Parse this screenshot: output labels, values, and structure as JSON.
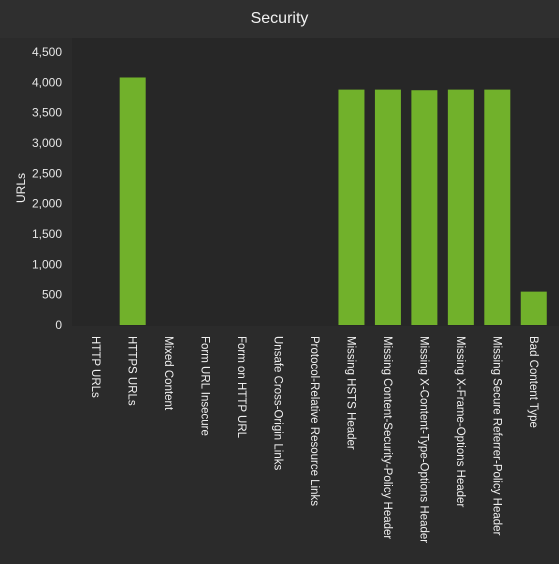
{
  "window": {
    "title": "Security"
  },
  "chart_data": {
    "type": "bar",
    "title": "Security",
    "ylabel": "URLs",
    "xlabel": "",
    "ylim": [
      0,
      4500
    ],
    "yticks": [
      0,
      500,
      1000,
      1500,
      2000,
      2500,
      3000,
      3500,
      4000,
      4500
    ],
    "ytick_labels": [
      "0",
      "500",
      "1,000",
      "1,500",
      "2,000",
      "2,500",
      "3,000",
      "3,500",
      "4,000",
      "4,500"
    ],
    "categories": [
      "HTTP URLs",
      "HTTPS URLs",
      "Mixed Content",
      "Form URL Insecure",
      "Form on HTTP URL",
      "Unsafe Cross-Origin Links",
      "Protocol-Relative Resource Links",
      "Missing HSTS Header",
      "Missing Content-Security-Policy Header",
      "Missing X-Content-Type-Options Header",
      "Missing X-Frame-Options Header",
      "Missing Secure Referrer-Policy Header",
      "Bad Content Type"
    ],
    "values": [
      0,
      4080,
      0,
      0,
      0,
      0,
      0,
      3880,
      3880,
      3870,
      3880,
      3880,
      550
    ],
    "bar_color": "#71b12b",
    "grid": false,
    "legend": "none"
  }
}
